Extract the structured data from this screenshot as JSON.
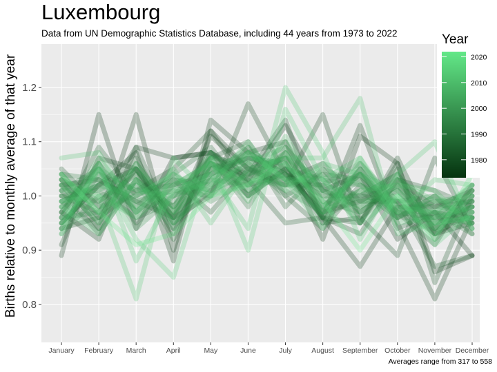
{
  "header": {
    "title": "Luxembourg",
    "subtitle": "Data from UN Demographic Statistics Database, including 44 years from 1973 to 2022"
  },
  "caption": "Averages range from 317 to 558",
  "colors": {
    "panel_bg": "#ebebeb",
    "gridline": "#ffffff",
    "line_dark": "#05330f",
    "line_light": "#63e888"
  },
  "chart_data": {
    "type": "line",
    "title": "Luxembourg",
    "xlabel": "",
    "ylabel": "Births relative to monthly average of that year",
    "categories": [
      "January",
      "February",
      "March",
      "April",
      "May",
      "June",
      "July",
      "August",
      "September",
      "October",
      "November",
      "December"
    ],
    "y_ticks": [
      0.8,
      0.9,
      1.0,
      1.1,
      1.2
    ],
    "y_tick_labels": [
      "0.8",
      "0.9",
      "1.0",
      "1.1",
      "1.2"
    ],
    "ylim": [
      0.73,
      1.28
    ],
    "legend": {
      "title": "Year",
      "type": "colorbar",
      "range": [
        1973,
        2022
      ],
      "ticks": [
        1980,
        1990,
        2000,
        2010,
        2020
      ],
      "tick_labels": [
        "1980",
        "1990",
        "2000",
        "2010",
        "2020"
      ]
    },
    "series": [
      {
        "name": "1973",
        "values": [
          0.89,
          1.15,
          0.94,
          1.07,
          1.08,
          1.03,
          1.13,
          1.01,
          1.04,
          0.92,
          0.97,
          0.89
        ]
      },
      {
        "name": "1974",
        "values": [
          1.03,
          0.94,
          1.15,
          0.9,
          1.12,
          1.05,
          1.07,
          0.92,
          1.11,
          1.06,
          0.86,
          0.89
        ]
      },
      {
        "name": "1975",
        "values": [
          0.97,
          0.92,
          1.09,
          1.07,
          1.08,
          1.0,
          1.05,
          0.96,
          1.13,
          0.95,
          0.81,
          0.96
        ]
      },
      {
        "name": "1976",
        "values": [
          0.95,
          1.02,
          1.08,
          0.88,
          1.14,
          1.08,
          1.1,
          0.96,
          0.87,
          0.98,
          0.98,
          1.01
        ]
      },
      {
        "name": "1977",
        "values": [
          1.04,
          0.96,
          1.05,
          0.96,
          1.11,
          1.05,
          1.02,
          1.15,
          0.95,
          1.07,
          0.93,
          0.95
        ]
      },
      {
        "name": "1978",
        "values": [
          0.91,
          1.07,
          1.05,
          0.96,
          1.0,
          1.17,
          1.04,
          0.97,
          0.99,
          1.03,
          0.98,
          0.99
        ]
      },
      {
        "name": "1979",
        "values": [
          0.99,
          1.02,
          1.05,
          0.93,
          1.08,
          1.04,
          1.14,
          0.95,
          0.96,
          0.89,
          1.07,
          0.94
        ]
      },
      {
        "name": "1980",
        "values": [
          0.94,
          0.96,
          1.01,
          1.05,
          1.12,
          1.02,
          1.04,
          1.0,
          1.0,
          0.99,
          0.93,
          0.97
        ]
      },
      {
        "name": "1981",
        "values": [
          1.02,
          1.03,
          0.99,
          0.96,
          1.05,
          1.07,
          1.05,
          0.96,
          0.95,
          1.06,
          0.84,
          1.0
        ]
      },
      {
        "name": "1982",
        "values": [
          1.05,
          0.98,
          1.09,
          0.94,
          1.06,
          1.03,
          0.95,
          0.96,
          0.93,
          1.03,
          1.01,
          0.98
        ]
      },
      {
        "name": "1983",
        "values": [
          0.96,
          1.09,
          1.0,
          1.03,
          0.97,
          1.05,
          1.03,
          1.06,
          0.99,
          0.99,
          0.87,
          0.89
        ]
      },
      {
        "name": "1984",
        "values": [
          1.01,
          0.93,
          1.03,
          0.98,
          1.07,
          1.1,
          1.0,
          0.94,
          1.02,
          0.97,
          0.91,
          1.02
        ]
      },
      {
        "name": "1985",
        "values": [
          0.98,
          1.05,
          0.95,
          1.02,
          1.04,
          1.07,
          1.06,
          0.95,
          1.05,
          0.94,
          0.97,
          0.96
        ]
      },
      {
        "name": "1986",
        "values": [
          1.0,
          0.97,
          1.07,
          0.95,
          1.01,
          1.09,
          0.98,
          1.05,
          0.97,
          1.02,
          0.94,
          0.98
        ]
      },
      {
        "name": "1987",
        "values": [
          0.95,
          1.02,
          0.98,
          1.04,
          1.09,
          1.0,
          1.08,
          0.97,
          1.01,
          0.96,
          1.0,
          0.93
        ]
      },
      {
        "name": "1988",
        "values": [
          1.03,
          0.99,
          1.04,
          0.92,
          1.06,
          1.04,
          1.02,
          1.02,
          0.95,
          1.05,
          0.92,
          0.99
        ]
      },
      {
        "name": "1989",
        "values": [
          0.97,
          1.06,
          0.97,
          1.0,
          1.03,
          1.08,
          1.04,
          0.98,
          1.04,
          0.97,
          0.96,
          0.95
        ]
      },
      {
        "name": "1990",
        "values": [
          1.02,
          0.95,
          1.06,
          0.97,
          1.07,
          0.98,
          1.09,
          1.01,
          0.98,
          1.01,
          0.94,
          1.01
        ]
      },
      {
        "name": "1991",
        "values": [
          0.94,
          1.04,
          1.01,
          1.02,
          1.01,
          1.06,
          1.0,
          1.04,
          1.03,
          0.96,
          0.99,
          0.96
        ]
      },
      {
        "name": "1992",
        "values": [
          1.0,
          1.01,
          0.96,
          0.99,
          1.08,
          1.02,
          1.06,
          0.96,
          1.0,
          1.04,
          0.95,
          0.98
        ]
      },
      {
        "name": "1993",
        "values": [
          0.96,
          0.97,
          1.05,
          0.95,
          1.04,
          1.07,
          1.03,
          1.02,
          1.06,
          0.98,
          0.93,
          1.0
        ]
      },
      {
        "name": "1994",
        "values": [
          1.04,
          1.03,
          0.99,
          1.01,
          1.0,
          1.04,
          1.07,
          0.99,
          0.97,
          1.02,
          0.97,
          0.93
        ]
      },
      {
        "name": "1995",
        "values": [
          0.99,
          0.94,
          1.03,
          0.96,
          1.06,
          1.01,
          1.05,
          1.03,
          1.02,
          0.99,
          1.0,
          0.97
        ]
      },
      {
        "name": "1996",
        "values": [
          1.01,
          1.05,
          0.97,
          1.03,
          1.02,
          1.05,
          1.01,
          0.97,
          1.05,
          0.96,
          0.96,
          1.02
        ]
      },
      {
        "name": "1997",
        "values": [
          0.93,
          1.0,
          1.02,
          0.98,
          1.05,
          1.08,
          1.04,
          1.01,
          0.99,
          1.03,
          0.94,
          0.96
        ]
      },
      {
        "name": "1998",
        "values": [
          1.02,
          0.98,
          1.0,
          1.04,
          0.99,
          1.03,
          1.08,
          0.98,
          1.03,
          0.97,
          0.99,
          0.99
        ]
      },
      {
        "name": "1999",
        "values": [
          0.97,
          1.06,
          0.94,
          1.0,
          1.07,
          1.06,
          1.02,
          1.04,
          0.96,
          1.01,
          0.95,
          1.01
        ]
      },
      {
        "name": "2000",
        "values": [
          1.0,
          0.99,
          1.04,
          0.97,
          1.03,
          1.02,
          1.1,
          0.99,
          1.04,
          0.98,
          0.97,
          0.95
        ]
      },
      {
        "name": "2001",
        "values": [
          0.95,
          1.03,
          0.99,
          1.02,
          1.06,
          1.0,
          1.05,
          1.02,
          1.0,
          1.04,
          0.93,
          1.0
        ]
      },
      {
        "name": "2002",
        "values": [
          1.03,
          0.96,
          1.02,
          0.94,
          1.04,
          1.09,
          1.03,
          0.97,
          1.06,
          0.99,
          0.98,
          0.97
        ]
      },
      {
        "name": "2003",
        "values": [
          0.98,
          1.04,
          0.97,
          1.03,
          1.01,
          1.04,
          1.07,
          1.03,
          0.97,
          1.02,
          0.96,
          0.98
        ]
      },
      {
        "name": "2004",
        "values": [
          1.01,
          1.01,
          1.05,
          0.98,
          1.08,
          1.01,
          1.04,
          0.96,
          1.05,
          0.96,
          1.0,
          0.95
        ]
      },
      {
        "name": "2005",
        "values": [
          0.96,
          1.07,
          0.98,
          1.01,
          1.02,
          1.06,
          1.09,
          1.01,
          0.99,
          1.0,
          0.94,
          1.01
        ]
      },
      {
        "name": "2006",
        "values": [
          1.04,
          0.97,
          1.03,
          0.96,
          1.05,
          1.03,
          1.02,
          1.05,
          1.02,
          0.97,
          0.97,
          0.99
        ]
      },
      {
        "name": "2007",
        "values": [
          0.99,
          1.02,
          1.0,
          1.04,
          1.0,
          1.07,
          1.06,
          0.98,
          1.04,
          1.01,
          0.95,
          0.96
        ]
      },
      {
        "name": "2008",
        "values": [
          1.02,
          0.95,
          1.06,
          0.97,
          1.07,
          0.99,
          1.11,
          1.0,
          0.98,
          1.03,
          0.99,
          1.0
        ]
      },
      {
        "name": "2009",
        "values": [
          0.94,
          1.05,
          1.01,
          1.0,
          1.03,
          1.08,
          1.03,
          1.03,
          1.07,
          0.95,
          0.96,
          0.98
        ]
      },
      {
        "name": "2010",
        "values": [
          1.03,
          1.0,
          0.96,
          1.02,
          1.06,
          1.02,
          1.08,
          0.97,
          1.01,
          1.02,
          1.01,
          0.94
        ]
      },
      {
        "name": "2011",
        "values": [
          0.98,
          0.93,
          1.03,
          0.95,
          1.02,
          1.1,
          1.01,
          1.06,
          1.04,
          0.98,
          0.97,
          1.02
        ]
      },
      {
        "name": "2012",
        "values": [
          1.07,
          1.08,
          0.97,
          1.05,
          0.95,
          1.05,
          1.07,
          1.07,
          1.18,
          0.93,
          0.95,
          0.96
        ]
      },
      {
        "name": "2013",
        "values": [
          0.93,
          1.06,
          0.88,
          1.01,
          1.04,
          0.94,
          1.2,
          1.08,
          0.92,
          1.04,
          1.1,
          0.94
        ]
      },
      {
        "name": "2014",
        "values": [
          0.99,
          1.0,
          0.81,
          1.07,
          1.0,
          1.08,
          1.03,
          0.94,
          1.07,
          0.97,
          1.03,
          1.02
        ]
      },
      {
        "name": "2015",
        "values": [
          0.95,
          1.05,
          0.92,
          0.85,
          1.07,
          0.9,
          1.16,
          1.03,
          0.95,
          1.0,
          0.91,
          0.97
        ]
      },
      {
        "name": "2022",
        "values": [
          1.04,
          0.97,
          0.91,
          0.93,
          1.0,
          1.02,
          1.06,
          0.99,
          0.9,
          1.0,
          0.92,
          1.04
        ]
      }
    ]
  }
}
